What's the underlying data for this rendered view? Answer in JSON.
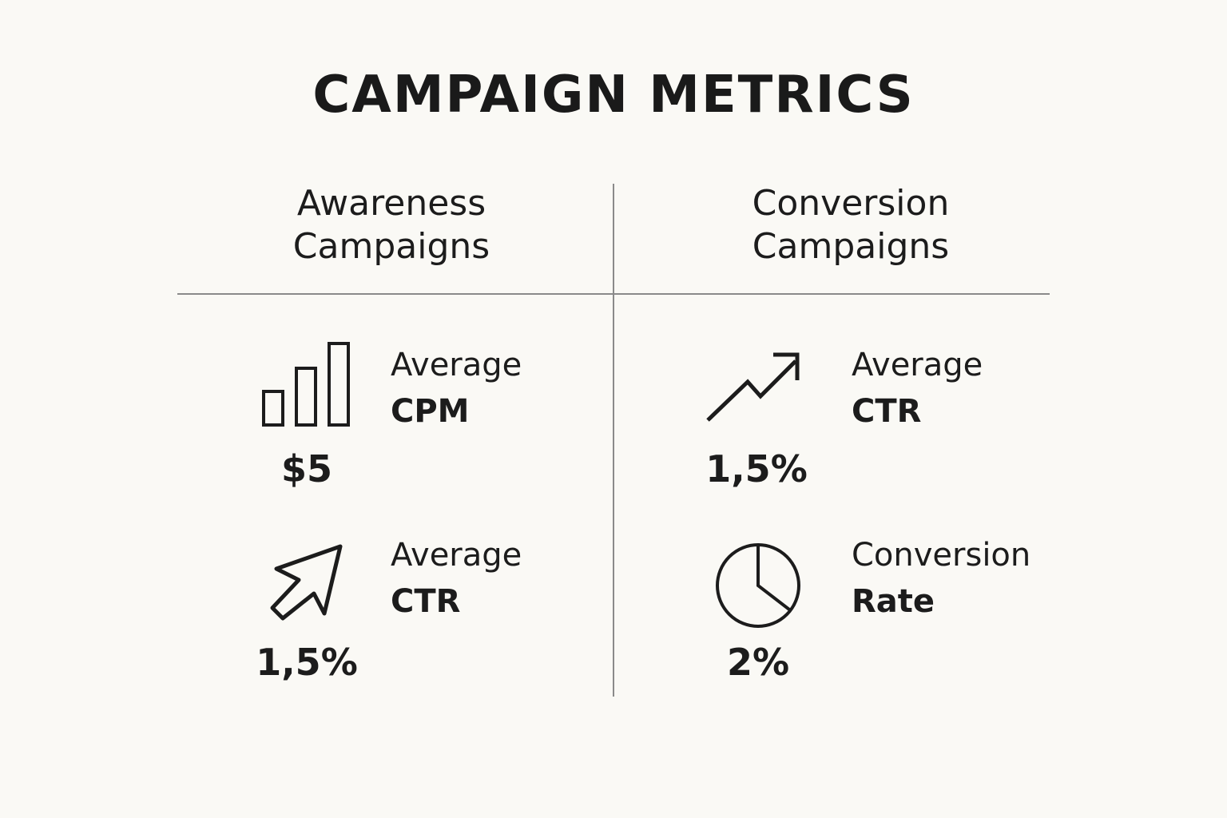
{
  "title": "CAMPAIGN METRICS",
  "columns": [
    {
      "heading_line1": "Awareness",
      "heading_line2": "Campaigns",
      "metrics": [
        {
          "icon": "bar-chart-icon",
          "label_line1": "Average",
          "label_line2": "CPM",
          "value": "$5"
        },
        {
          "icon": "cursor-arrow-icon",
          "label_line1": "Average",
          "label_line2": "CTR",
          "value": "1,5%"
        }
      ]
    },
    {
      "heading_line1": "Conversion",
      "heading_line2": "Campaigns",
      "metrics": [
        {
          "icon": "trend-up-icon",
          "label_line1": "Average",
          "label_line2": "CTR",
          "value": "1,5%"
        },
        {
          "icon": "pie-chart-icon",
          "label_line1": "Conversion",
          "label_line2": "Rate",
          "value": "2%"
        }
      ]
    }
  ],
  "colors": {
    "background": "#faf9f5",
    "text": "#1c1c1c",
    "divider": "#8a8a8a"
  }
}
